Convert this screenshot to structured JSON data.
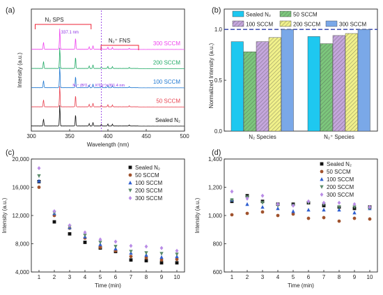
{
  "chart_data": [
    {
      "panel": "(a)",
      "type": "line",
      "xlabel": "Wavelength (nm)",
      "ylabel": "Intensity (a.u.)",
      "xlim": [
        300,
        500
      ],
      "xticks": [
        300,
        350,
        400,
        450,
        500
      ],
      "series": [
        {
          "name": "300 SCCM",
          "color": "#ee44ee"
        },
        {
          "name": "200 SCCM",
          "color": "#22aa66"
        },
        {
          "name": "100 SCCM",
          "color": "#1f78d1"
        },
        {
          "name": "50 SCCM",
          "color": "#e8414f"
        },
        {
          "name": "Sealed N₂",
          "color": "#111111"
        }
      ],
      "peaks_nm": [
        315.9,
        337.1,
        357.7,
        375.5,
        380.5,
        391.4,
        399.8,
        405.9,
        427.8
      ],
      "peak_rel_heights": [
        0.35,
        1.0,
        0.55,
        0.12,
        0.18,
        0.08,
        0.1,
        0.09,
        0.05
      ],
      "annotations": {
        "sps": "N₂ SPS",
        "peak": "337.1 nm",
        "fns": "N₂⁺ FNS",
        "transition": "N₂⁺ (B²Σ₂⁺→X²Σg⁺)=391.4 nm",
        "dashed_line_nm": 391.4
      }
    },
    {
      "panel": "(b)",
      "type": "bar",
      "ylabel": "Normalized Intensity (a.u.)",
      "categories": [
        "N₂ Species",
        "N₂⁺ Species"
      ],
      "ylim": [
        0.0,
        1.2
      ],
      "yticks": [
        0.0,
        0.5,
        1.0
      ],
      "reference_line": 1.0,
      "series": [
        {
          "name": "Sealed N₂",
          "values": [
            0.88,
            0.93
          ],
          "color": "#1ec8f0"
        },
        {
          "name": "50 SCCM",
          "values": [
            0.78,
            0.86
          ],
          "color": "#7cc67c"
        },
        {
          "name": "100 SCCM",
          "values": [
            0.88,
            0.94
          ],
          "color": "#c4a6dc"
        },
        {
          "name": "200 SCCM",
          "values": [
            0.92,
            0.96
          ],
          "color": "#f0f08a"
        },
        {
          "name": "300 SCCM",
          "values": [
            1.0,
            1.0
          ],
          "color": "#7aa8e8"
        }
      ]
    },
    {
      "panel": "(c)",
      "type": "scatter",
      "xlabel": "Time (min)",
      "ylabel": "Intensity (a.u.)",
      "xlim": [
        0.5,
        10.5
      ],
      "ylim": [
        4000,
        20000
      ],
      "yticks": [
        4000,
        8000,
        12000,
        16000,
        20000
      ],
      "ytick_labels": [
        "4,000",
        "8,000",
        "12,000",
        "16,000",
        "20,000"
      ],
      "x": [
        1,
        2,
        3,
        4,
        5,
        6,
        7,
        8,
        9,
        10
      ],
      "series": [
        {
          "name": "Sealed N₂",
          "marker": "square",
          "color": "#111111",
          "values": [
            16800,
            11100,
            9400,
            8200,
            7400,
            6900,
            5700,
            5600,
            5300,
            5300
          ]
        },
        {
          "name": "50 SCCM",
          "marker": "circle",
          "color": "#a0522d",
          "values": [
            16000,
            12000,
            10200,
            8800,
            7500,
            7000,
            6200,
            6000,
            5700,
            5800
          ]
        },
        {
          "name": "100 SCCM",
          "marker": "triangle-up",
          "color": "#2f5fd0",
          "values": [
            16900,
            12300,
            10300,
            9000,
            7900,
            7300,
            6700,
            6400,
            6100,
            6200
          ]
        },
        {
          "name": "200 SCCM",
          "marker": "triangle-down",
          "color": "#5a8a6a",
          "values": [
            17600,
            12400,
            10400,
            9200,
            8200,
            7600,
            6900,
            6700,
            6600,
            6500
          ]
        },
        {
          "name": "300 SCCM",
          "marker": "diamond",
          "color": "#b98ce6",
          "values": [
            18700,
            12600,
            10600,
            9600,
            8600,
            8300,
            7700,
            7600,
            7400,
            7000
          ]
        }
      ]
    },
    {
      "panel": "(d)",
      "type": "scatter",
      "xlabel": "Time (min)",
      "ylabel": "Intensity (a.u.)",
      "xlim": [
        0.5,
        10.5
      ],
      "ylim": [
        600,
        1400
      ],
      "yticks": [
        600,
        800,
        1000,
        1200,
        1400
      ],
      "ytick_labels": [
        "600",
        "800",
        "1,000",
        "1,200",
        "1,400"
      ],
      "x": [
        1,
        2,
        3,
        4,
        5,
        6,
        7,
        8,
        9,
        10
      ],
      "series": [
        {
          "name": "Sealed N₂",
          "marker": "square",
          "color": "#111111",
          "values": [
            1100,
            1140,
            1100,
            1080,
            1080,
            1090,
            1070,
            1060,
            1050,
            1060
          ]
        },
        {
          "name": "50 SCCM",
          "marker": "circle",
          "color": "#a0522d",
          "values": [
            1005,
            1015,
            1025,
            1000,
            1010,
            980,
            985,
            960,
            980,
            975
          ]
        },
        {
          "name": "100 SCCM",
          "marker": "triangle-up",
          "color": "#2f5fd0",
          "values": [
            1110,
            1080,
            1060,
            1050,
            1030,
            1040,
            1040,
            1040,
            1020,
            1050
          ]
        },
        {
          "name": "200 SCCM",
          "marker": "triangle-down",
          "color": "#5a8a6a",
          "values": [
            1110,
            1130,
            1090,
            1070,
            1070,
            1090,
            1080,
            1060,
            1060,
            1050
          ]
        },
        {
          "name": "300 SCCM",
          "marker": "diamond",
          "color": "#b98ce6",
          "values": [
            1170,
            1120,
            1140,
            1080,
            1070,
            1100,
            1090,
            1090,
            1080,
            1060
          ]
        }
      ]
    }
  ]
}
